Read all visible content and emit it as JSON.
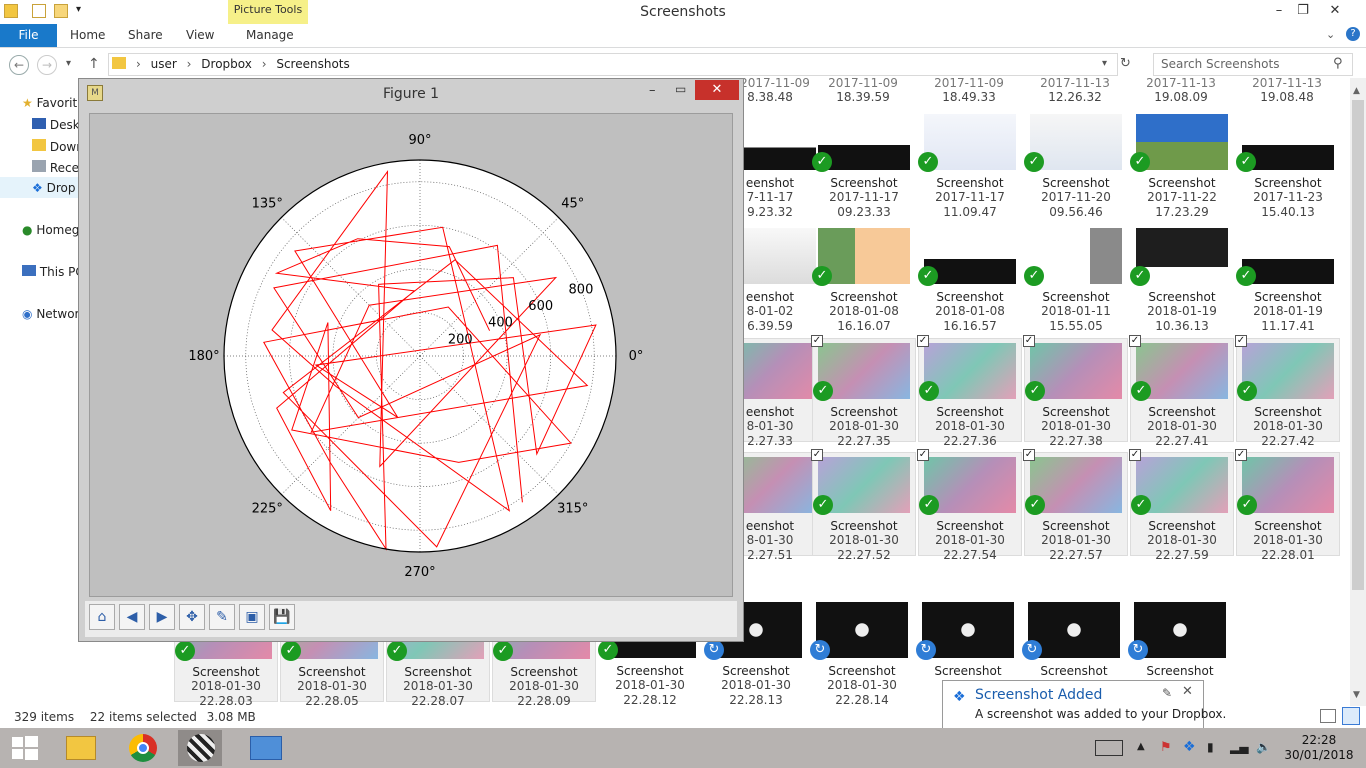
{
  "window": {
    "title": "Screenshots",
    "context_tab": "Picture Tools",
    "minimize": "–",
    "maximize": "❐",
    "close": "✕"
  },
  "ribbon": {
    "file": "File",
    "tabs": [
      "Home",
      "Share",
      "View",
      "Manage"
    ]
  },
  "address": {
    "crumbs": [
      "user",
      "Dropbox",
      "Screenshots"
    ],
    "search_placeholder": "Search Screenshots"
  },
  "navpane": [
    {
      "label": "Favorit",
      "icon": "star-icon"
    },
    {
      "label": "Deskt",
      "icon": "desktop-icon"
    },
    {
      "label": "Down",
      "icon": "downloads-icon"
    },
    {
      "label": "Recer",
      "icon": "recent-icon"
    },
    {
      "label": "Drop",
      "icon": "dropbox-icon"
    },
    {
      "label": "Homeg",
      "icon": "homegroup-icon"
    },
    {
      "label": "This PC",
      "icon": "computer-icon"
    },
    {
      "label": "Networ",
      "icon": "network-icon"
    }
  ],
  "grid": {
    "row0": [
      {
        "d1": "8.38.48"
      },
      {
        "d1": "18.39.59"
      },
      {
        "d1": "18.49.33"
      },
      {
        "d1": "12.26.32"
      },
      {
        "d1": "19.08.09"
      },
      {
        "d1": "19.08.48"
      }
    ],
    "row0_top": [
      "2017-11-09",
      "2017-11-09",
      "2017-11-09",
      "2017-11-13",
      "2017-11-13",
      "2017-11-13"
    ],
    "row1": [
      {
        "n": "eenshot",
        "d1": "7-11-17",
        "d2": "9.23.32"
      },
      {
        "n": "Screenshot",
        "d1": "2017-11-17",
        "d2": "09.23.33"
      },
      {
        "n": "Screenshot",
        "d1": "2017-11-17",
        "d2": "11.09.47"
      },
      {
        "n": "Screenshot",
        "d1": "2017-11-20",
        "d2": "09.56.46"
      },
      {
        "n": "Screenshot",
        "d1": "2017-11-22",
        "d2": "17.23.29"
      },
      {
        "n": "Screenshot",
        "d1": "2017-11-23",
        "d2": "15.40.13"
      }
    ],
    "row2": [
      {
        "n": "eenshot",
        "d1": "8-01-02",
        "d2": "6.39.59"
      },
      {
        "n": "Screenshot",
        "d1": "2018-01-08",
        "d2": "16.16.07"
      },
      {
        "n": "Screenshot",
        "d1": "2018-01-08",
        "d2": "16.16.57"
      },
      {
        "n": "Screenshot",
        "d1": "2018-01-11",
        "d2": "15.55.05"
      },
      {
        "n": "Screenshot",
        "d1": "2018-01-19",
        "d2": "10.36.13"
      },
      {
        "n": "Screenshot",
        "d1": "2018-01-19",
        "d2": "11.17.41"
      }
    ],
    "row3": [
      {
        "n": "eenshot",
        "d1": "8-01-30",
        "d2": "2.27.33"
      },
      {
        "n": "Screenshot",
        "d1": "2018-01-30",
        "d2": "22.27.35"
      },
      {
        "n": "Screenshot",
        "d1": "2018-01-30",
        "d2": "22.27.36"
      },
      {
        "n": "Screenshot",
        "d1": "2018-01-30",
        "d2": "22.27.38"
      },
      {
        "n": "Screenshot",
        "d1": "2018-01-30",
        "d2": "22.27.41"
      },
      {
        "n": "Screenshot",
        "d1": "2018-01-30",
        "d2": "22.27.42"
      }
    ],
    "row4": [
      {
        "n": "eenshot",
        "d1": "8-01-30",
        "d2": "2.27.51"
      },
      {
        "n": "Screenshot",
        "d1": "2018-01-30",
        "d2": "22.27.52"
      },
      {
        "n": "Screenshot",
        "d1": "2018-01-30",
        "d2": "22.27.54"
      },
      {
        "n": "Screenshot",
        "d1": "2018-01-30",
        "d2": "22.27.57"
      },
      {
        "n": "Screenshot",
        "d1": "2018-01-30",
        "d2": "22.27.59"
      },
      {
        "n": "Screenshot",
        "d1": "2018-01-30",
        "d2": "22.28.01"
      }
    ],
    "row5": [
      {
        "n": "Screenshot",
        "d1": "2018-01-30",
        "d2": "22.28.03"
      },
      {
        "n": "Screenshot",
        "d1": "2018-01-30",
        "d2": "22.28.05"
      },
      {
        "n": "Screenshot",
        "d1": "2018-01-30",
        "d2": "22.28.07"
      },
      {
        "n": "Screenshot",
        "d1": "2018-01-30",
        "d2": "22.28.09"
      },
      {
        "n": "Screenshot",
        "d1": "2018-01-30",
        "d2": "22.28.12"
      },
      {
        "n": "Screenshot",
        "d1": "2018-01-30",
        "d2": "22.28.13"
      },
      {
        "n": "Screenshot",
        "d1": "2018-01-30",
        "d2": "22.28.14"
      },
      {
        "n": "Screenshot",
        "d1": "",
        "d2": ""
      },
      {
        "n": "Screenshot",
        "d1": "",
        "d2": ""
      },
      {
        "n": "Screenshot",
        "d1": "",
        "d2": ""
      }
    ]
  },
  "figure": {
    "title": "Figure 1",
    "toolbar": [
      "home-icon",
      "back-icon",
      "forward-icon",
      "pan-icon",
      "configure-icon",
      "subplots-icon",
      "save-icon"
    ]
  },
  "chart_data": {
    "type": "line",
    "projection": "polar",
    "title": "",
    "theta_ticks": [
      "0°",
      "45°",
      "90°",
      "135°",
      "180°",
      "225°",
      "270°",
      "315°"
    ],
    "r_ticks": [
      "200",
      "400",
      "600",
      "800"
    ],
    "rlim": [
      0,
      900
    ],
    "grid": true,
    "color": "#ff0000",
    "series": [
      {
        "r": [
          340,
          520,
          610,
          760,
          300,
          700,
          820,
          450,
          680,
          520,
          800,
          260,
          720,
          640,
          900,
          380,
          560,
          700,
          820,
          480,
          300,
          750,
          600,
          820,
          410,
          690,
          860,
          540,
          720,
          330,
          610,
          780,
          470,
          650,
          880,
          560,
          400,
          740,
          620,
          820
        ],
        "theta_deg": [
          20,
          75,
          118,
          150,
          95,
          200,
          240,
          160,
          210,
          290,
          330,
          60,
          175,
          230,
          260,
          120,
          40,
          320,
          10,
          185,
          250,
          140,
          80,
          300,
          200,
          170,
          100,
          250,
          30,
          135,
          215,
          350,
          70,
          195,
          275,
          10,
          225,
          155,
          55,
          305
        ]
      }
    ]
  },
  "status": {
    "count": "329 items",
    "selected": "22 items selected",
    "size": "3.08 MB"
  },
  "toast": {
    "title": "Screenshot Added",
    "message": "A screenshot was added to your Dropbox."
  },
  "taskbar": {
    "time": "22:28",
    "date": "30/01/2018"
  }
}
